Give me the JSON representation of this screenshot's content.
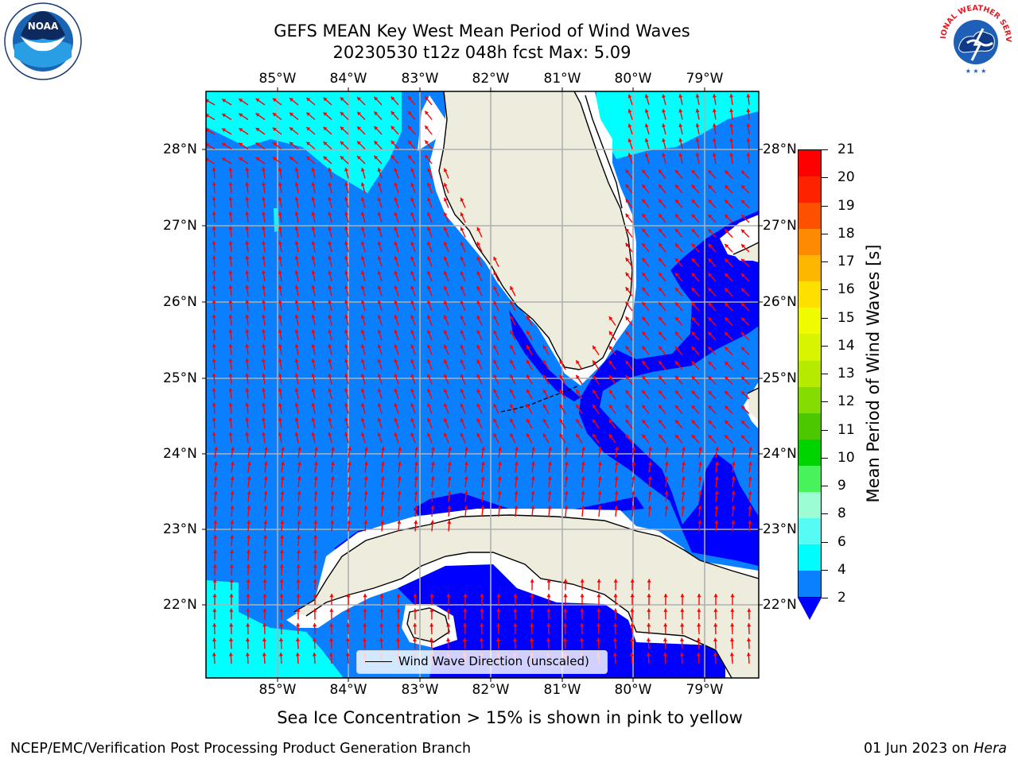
{
  "title": {
    "line1": "GEFS MEAN Key West Mean Period of Wind Waves",
    "line2": "20230530 t12z 048h fcst   Max: 5.09"
  },
  "map": {
    "lon_labels": [
      "85°W",
      "84°W",
      "83°W",
      "82°W",
      "81°W",
      "80°W",
      "79°W"
    ],
    "lat_labels": [
      "28°N",
      "27°N",
      "26°N",
      "25°N",
      "24°N",
      "23°N",
      "22°N"
    ],
    "extent": {
      "lon_min": -86.0,
      "lon_max": -78.3,
      "lat_min": 21.0,
      "lat_max": 28.8
    },
    "colors": {
      "land": "#eeeddd",
      "coast": "#000000",
      "grid": "#b0b0b0",
      "arrow": "#ff0000",
      "period_lt2": "#0000ff",
      "period_2_4": "#0a7fff",
      "period_4_6": "#00ffff",
      "no_data": "#ffffff"
    }
  },
  "legend": {
    "label": "Wind Wave Direction (unscaled)"
  },
  "colorbar": {
    "title": "Mean Period of Wind Waves [s]",
    "ticks": [
      2,
      4,
      6,
      8,
      9,
      10,
      11,
      12,
      13,
      14,
      15,
      16,
      17,
      18,
      19,
      20,
      21
    ],
    "tick_labels": [
      "2",
      "4",
      "6",
      "8",
      "9",
      "10",
      "11",
      "12",
      "13",
      "14",
      "15",
      "16",
      "17",
      "18",
      "19",
      "20",
      "21"
    ],
    "colors": [
      "#fd0000",
      "#fd2200",
      "#fd5000",
      "#fd8a00",
      "#fdb700",
      "#fde000",
      "#f0fa00",
      "#d8f400",
      "#b6ea00",
      "#84dc00",
      "#4cc800",
      "#00d400",
      "#48f25a",
      "#9cfcd2",
      "#56fbf4",
      "#00fdfd",
      "#0a80ff"
    ],
    "under_color": "#0000ff"
  },
  "notes": {
    "sea_ice": "Sea Ice Concentration > 15% is shown in pink to yellow",
    "footer_left": "NCEP/EMC/Verification Post Processing Product Generation Branch",
    "footer_date": "01 Jun 2023 on ",
    "footer_host": "Hera"
  },
  "logos": {
    "noaa": "NOAA",
    "nws": "NATIONAL WEATHER SERVICE"
  }
}
